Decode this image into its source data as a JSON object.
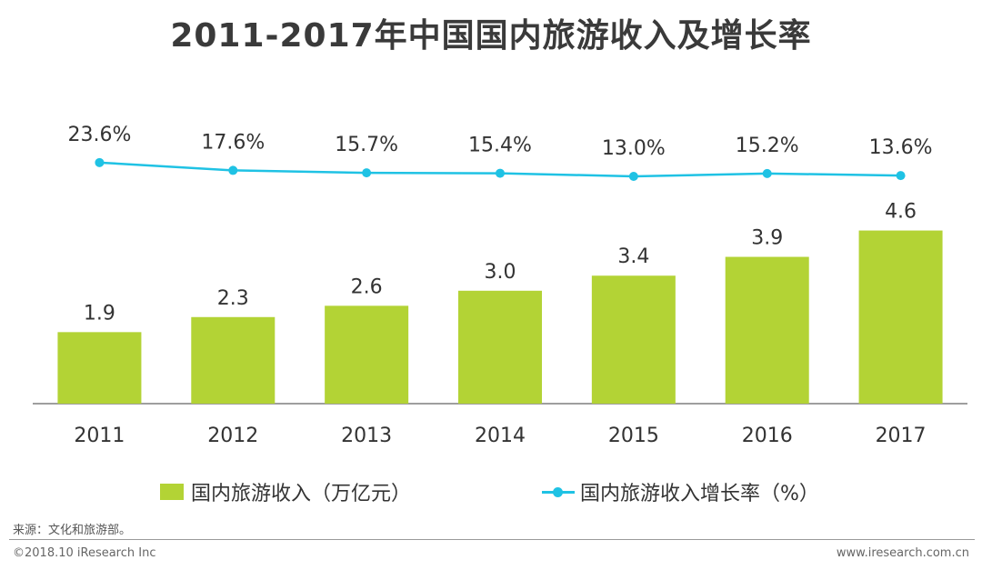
{
  "title": "2011-2017年中国国内旅游收入及增长率",
  "colors": {
    "bar": "#b3d335",
    "line": "#1fc2e4",
    "axis": "#7f7f7f",
    "text": "#333333"
  },
  "chart_data": {
    "type": "bar",
    "categories": [
      "2011",
      "2012",
      "2013",
      "2014",
      "2015",
      "2016",
      "2017"
    ],
    "series": [
      {
        "name": "国内旅游收入（万亿元）",
        "type": "bar",
        "values": [
          1.9,
          2.3,
          2.6,
          3.0,
          3.4,
          3.9,
          4.6
        ],
        "labels": [
          "1.9",
          "2.3",
          "2.6",
          "3.0",
          "3.4",
          "3.9",
          "4.6"
        ]
      },
      {
        "name": "国内旅游收入增长率（%）",
        "type": "line",
        "values": [
          23.6,
          17.6,
          15.7,
          15.4,
          13.0,
          15.2,
          13.6
        ],
        "labels": [
          "23.6%",
          "17.6%",
          "15.7%",
          "15.4%",
          "13.0%",
          "15.2%",
          "13.6%"
        ]
      }
    ],
    "title": "2011-2017年中国国内旅游收入及增长率",
    "legend_position": "bottom",
    "grid": false
  },
  "source": "来源：文化和旅游部。",
  "copyright": "©2018.10 iResearch Inc",
  "website": "www.iresearch.com.cn"
}
